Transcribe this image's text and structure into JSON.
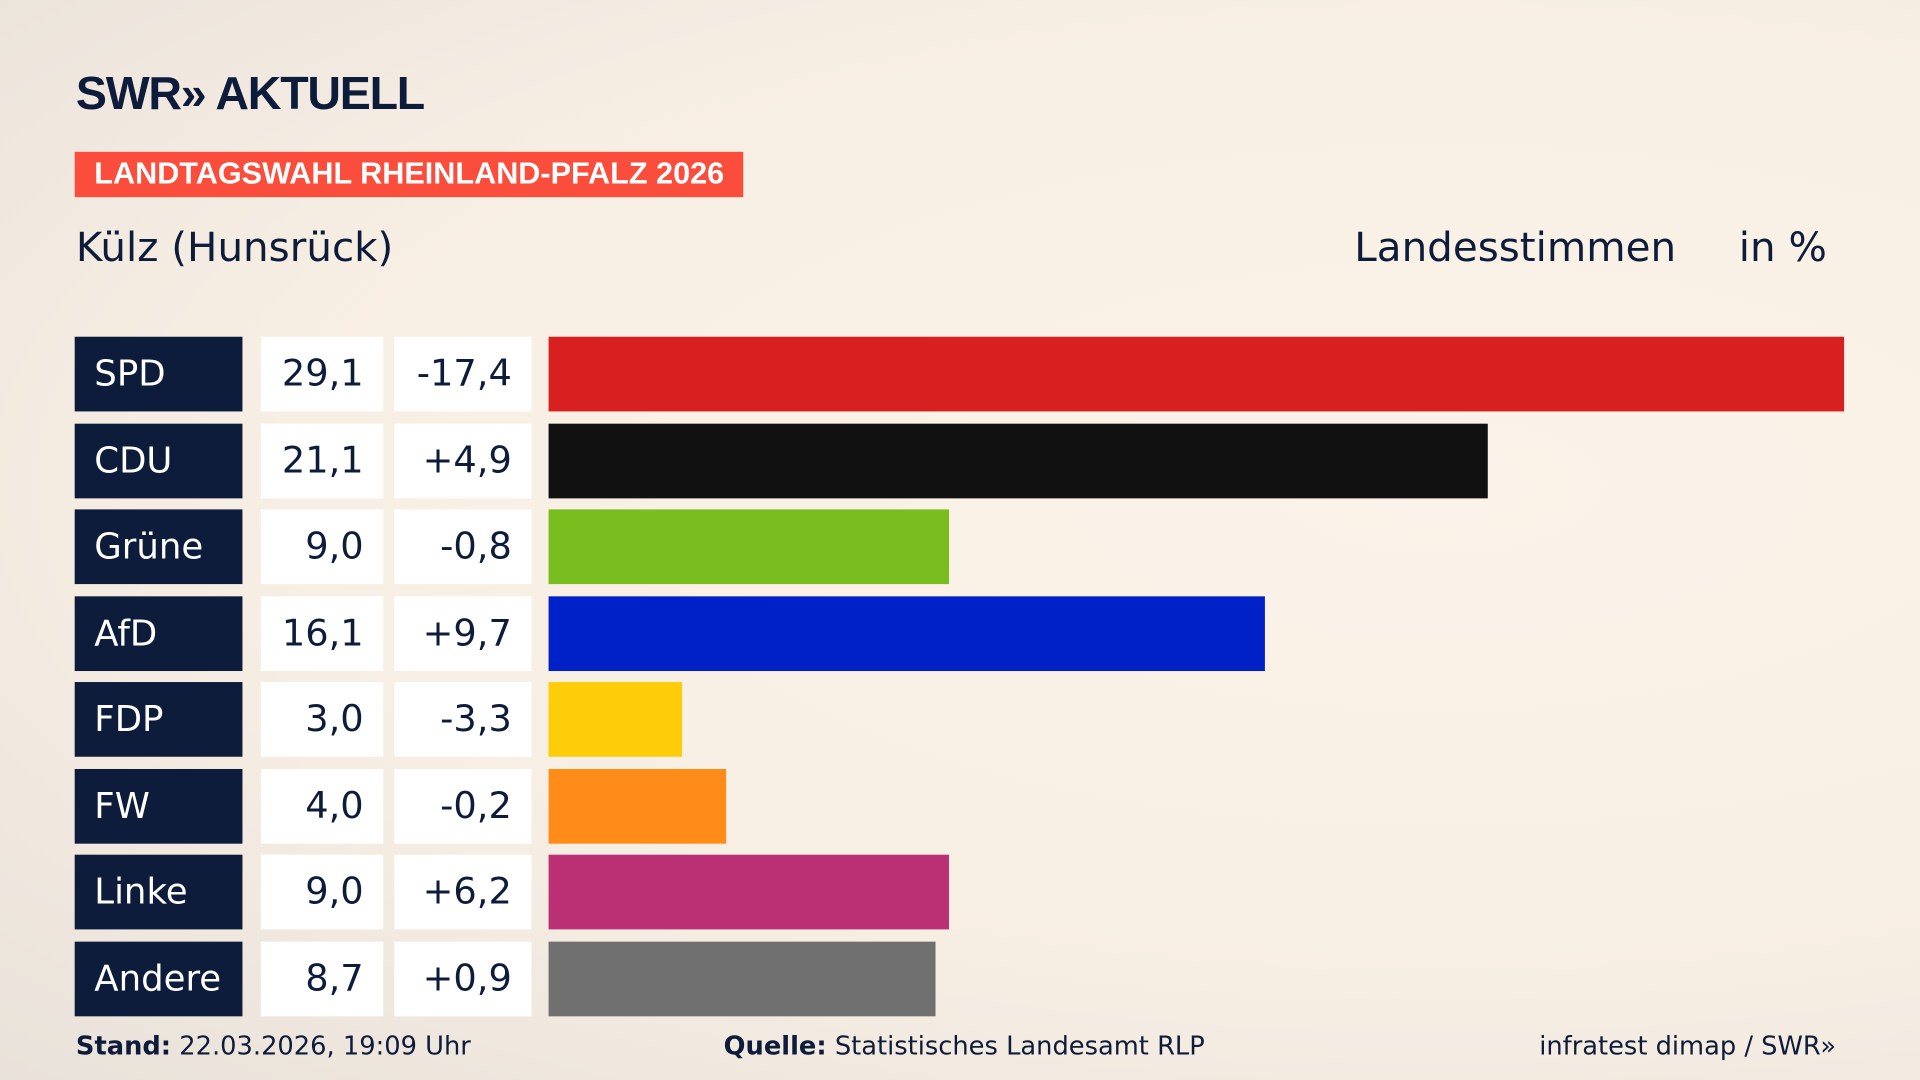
{
  "header": {
    "logo": "SWR» AKTUELL",
    "banner": "LANDTAGSWAHL RHEINLAND-PFALZ 2026",
    "place": "Külz (Hunsrück)",
    "vote_type": "Landesstimmen",
    "unit": "in %"
  },
  "chart_data": {
    "type": "bar",
    "orientation": "horizontal",
    "unit": "%",
    "categories": [
      "SPD",
      "CDU",
      "Grüne",
      "AfD",
      "FDP",
      "FW",
      "Linke",
      "Andere"
    ],
    "values": [
      29.1,
      21.1,
      9.0,
      16.1,
      3.0,
      4.0,
      9.0,
      8.7
    ],
    "value_labels": [
      "29,1",
      "21,1",
      "9,0",
      "16,1",
      "3,0",
      "4,0",
      "9,0",
      "8,7"
    ],
    "diff_labels": [
      "-17,4",
      "+4,9",
      "-0,8",
      "+9,7",
      "-3,3",
      "-0,2",
      "+6,2",
      "+0,9"
    ],
    "colors": [
      "#d92020",
      "#111111",
      "#78bc1e",
      "#0021c8",
      "#ffcc0a",
      "#ff8c19",
      "#bb3075",
      "#707070"
    ],
    "xlim": [
      0,
      29.1
    ]
  },
  "footer": {
    "stand_label": "Stand:",
    "stand_value": "22.03.2026, 19:09 Uhr",
    "source_label": "Quelle:",
    "source_value": "Statistisches Landesamt RLP",
    "credit": "infratest dimap / SWR»"
  }
}
